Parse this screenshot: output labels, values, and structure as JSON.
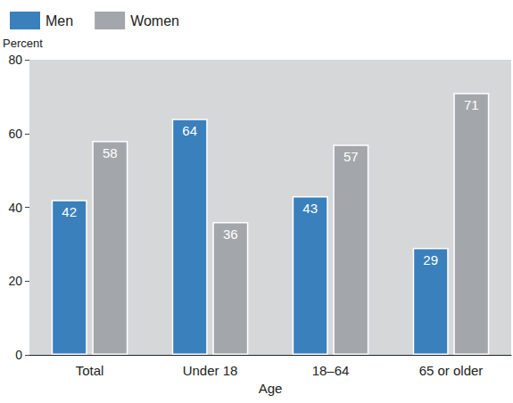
{
  "chart_data": {
    "type": "bar",
    "xlabel": "Age",
    "ylabel": "Percent",
    "categories": [
      "Total",
      "Under 18",
      "18–64",
      "65 or older"
    ],
    "series": [
      {
        "name": "Men",
        "color": "#3a80bd",
        "values": [
          42,
          64,
          43,
          29
        ]
      },
      {
        "name": "Women",
        "color": "#a3a7ab",
        "values": [
          58,
          36,
          57,
          71
        ]
      }
    ],
    "ylim": [
      0,
      80
    ],
    "yticks": [
      0,
      20,
      40,
      60,
      80
    ],
    "grid": false,
    "legend": "top-left",
    "data_labels": true
  }
}
